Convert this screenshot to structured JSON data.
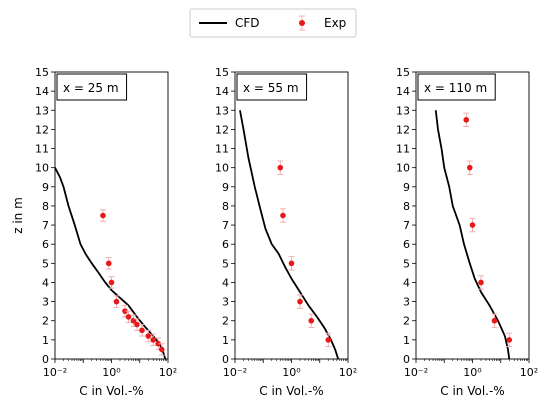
{
  "legend": {
    "cfd_label": "CFD",
    "exp_label": "Exp"
  },
  "colors": {
    "cfd_line": "#000000",
    "exp_marker": "#e8191a",
    "exp_errorbar": "#f0b0b0",
    "axes": "#000000",
    "background": "#ffffff"
  },
  "chart_data": [
    {
      "type": "line",
      "annotation": "x = 25 m",
      "xlabel": "C in Vol.-%",
      "ylabel": "z in m",
      "xscale": "log",
      "xlim": [
        0.01,
        100
      ],
      "ylim": [
        0,
        15
      ],
      "xticks": [
        0.01,
        1,
        100
      ],
      "xtick_labels": [
        "10⁻²",
        "10⁰",
        "10²"
      ],
      "yticks": [
        0,
        1,
        2,
        3,
        4,
        5,
        6,
        7,
        8,
        9,
        10,
        11,
        12,
        13,
        14,
        15
      ],
      "series": [
        {
          "name": "CFD",
          "kind": "line",
          "x": [
            0.01,
            0.015,
            0.02,
            0.03,
            0.05,
            0.08,
            0.12,
            0.2,
            0.35,
            0.6,
            1.0,
            2.0,
            4.0,
            8.0,
            15.0,
            30.0,
            50.0,
            70.0,
            80.0
          ],
          "y": [
            10.0,
            9.5,
            9.0,
            8.0,
            7.0,
            6.0,
            5.5,
            5.0,
            4.5,
            4.0,
            3.6,
            3.2,
            2.8,
            2.2,
            1.7,
            1.2,
            0.8,
            0.3,
            0.0
          ]
        },
        {
          "name": "Exp",
          "kind": "scatter",
          "x": [
            0.5,
            0.8,
            1.0,
            1.5,
            3.0,
            4.0,
            6.0,
            8.0,
            12.0,
            20.0,
            30.0,
            45.0,
            60.0
          ],
          "y": [
            7.5,
            5.0,
            4.0,
            3.0,
            2.5,
            2.2,
            2.0,
            1.8,
            1.5,
            1.2,
            1.0,
            0.8,
            0.5
          ],
          "y_err": 0.3
        }
      ]
    },
    {
      "type": "line",
      "annotation": "x = 55 m",
      "xlabel": "C in Vol.-%",
      "ylabel": "",
      "xscale": "log",
      "xlim": [
        0.01,
        100
      ],
      "ylim": [
        0,
        15
      ],
      "xticks": [
        0.01,
        1,
        100
      ],
      "xtick_labels": [
        "10⁻²",
        "10⁰",
        "10²"
      ],
      "yticks": [
        0,
        1,
        2,
        3,
        4,
        5,
        6,
        7,
        8,
        9,
        10,
        11,
        12,
        13,
        14,
        15
      ],
      "series": [
        {
          "name": "CFD",
          "kind": "line",
          "x": [
            0.015,
            0.02,
            0.03,
            0.05,
            0.08,
            0.12,
            0.2,
            0.35,
            0.6,
            1.0,
            2.0,
            4.0,
            8.0,
            15.0,
            25.0,
            35.0,
            45.0
          ],
          "y": [
            13.0,
            12.0,
            10.5,
            9.0,
            7.8,
            6.8,
            6.0,
            5.5,
            4.8,
            4.2,
            3.5,
            2.8,
            2.2,
            1.6,
            1.0,
            0.5,
            0.0
          ]
        },
        {
          "name": "Exp",
          "kind": "scatter",
          "x": [
            0.4,
            0.5,
            1.0,
            2.0,
            5.0,
            20.0
          ],
          "y": [
            10.0,
            7.5,
            5.0,
            3.0,
            2.0,
            1.0
          ],
          "y_err": 0.35
        }
      ]
    },
    {
      "type": "line",
      "annotation": "x = 110 m",
      "xlabel": "C in Vol.-%",
      "ylabel": "",
      "xscale": "log",
      "xlim": [
        0.01,
        100
      ],
      "ylim": [
        0,
        15
      ],
      "xticks": [
        0.01,
        1,
        100
      ],
      "xtick_labels": [
        "10⁻²",
        "10⁰",
        "10²"
      ],
      "yticks": [
        0,
        1,
        2,
        3,
        4,
        5,
        6,
        7,
        8,
        9,
        10,
        11,
        12,
        13,
        14,
        15
      ],
      "series": [
        {
          "name": "CFD",
          "kind": "line",
          "x": [
            0.05,
            0.06,
            0.08,
            0.1,
            0.15,
            0.2,
            0.35,
            0.5,
            0.8,
            1.2,
            2.0,
            4.0,
            8.0,
            14.0,
            18.0,
            20.0
          ],
          "y": [
            13.0,
            12.0,
            11.0,
            10.0,
            9.0,
            8.0,
            7.0,
            6.0,
            5.0,
            4.2,
            3.5,
            2.8,
            2.0,
            1.2,
            0.5,
            0.0
          ]
        },
        {
          "name": "Exp",
          "kind": "scatter",
          "x": [
            0.6,
            0.8,
            1.0,
            2.0,
            6.0,
            20.0
          ],
          "y": [
            12.5,
            10.0,
            7.0,
            4.0,
            2.0,
            1.0
          ],
          "y_err": 0.35
        }
      ]
    }
  ]
}
